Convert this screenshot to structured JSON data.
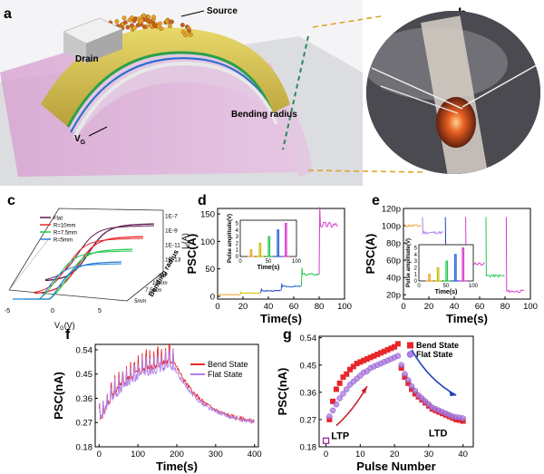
{
  "figure": {
    "panels": {
      "a": {
        "label": "a",
        "annotations": {
          "source": "Source",
          "drain": "Drain",
          "vg": "V",
          "vg_sub": "G",
          "radius": "Bending radius"
        }
      },
      "b": {
        "label": "b"
      },
      "c": {
        "label": "c",
        "xlabel": "V",
        "xlabel_sub": "G",
        "xlabel_unit": "(V)",
        "zlabel": "I",
        "zlabel_sub": "d",
        "zlabel_unit": "(A)",
        "depth_label": "Bending radius",
        "xticks": [
          "-5",
          "0",
          "5"
        ],
        "zticks": [
          "1E-7",
          "1E-9",
          "1E-11",
          "1E-13"
        ],
        "depth_ticks": [
          "flat",
          "10mm",
          "7.5mm",
          "5mm"
        ]
      },
      "d": {
        "label": "d"
      },
      "e": {
        "label": "e"
      },
      "f": {
        "label": "f"
      },
      "g": {
        "label": "g"
      }
    },
    "colors": {
      "red": "#e8262b",
      "purple": "#b07ee8",
      "darkred": "#8b1a1a",
      "blue": "#1f3fc0",
      "green": "#22c84a",
      "magenta": "#d63ac8",
      "orange": "#f2a02a",
      "yellow": "#c8c000"
    }
  },
  "chart_data": [
    {
      "panel": "c",
      "type": "line",
      "title": "",
      "xlabel": "VG(V)",
      "ylabel": "Id(A)",
      "zlabel": "Bending radius",
      "legend": [
        "Flat",
        "R=10mm",
        "R=7.5mm",
        "R=5mm"
      ],
      "series_colors": [
        "#5a1a4a",
        "#e8262b",
        "#22c84a",
        "#2a7fd8"
      ],
      "xlim": [
        -5,
        5
      ],
      "note": "3D transfer curves, log current axis"
    },
    {
      "panel": "d",
      "type": "line",
      "title": "",
      "xlabel": "Time(s)",
      "ylabel": "PSC(A)",
      "xlim": [
        0,
        100
      ],
      "ylim": [
        -5,
        160
      ],
      "xticks": [
        0,
        20,
        40,
        60,
        80,
        100
      ],
      "yticks": [
        0,
        50,
        100,
        150
      ],
      "series": [
        {
          "name": "pulse1",
          "color": "#f2a02a",
          "x": [
            0,
            18
          ],
          "y": [
            3,
            3
          ]
        },
        {
          "name": "pulse2",
          "color": "#c8c000",
          "x": [
            18,
            34
          ],
          "y": [
            6,
            6
          ]
        },
        {
          "name": "pulse3",
          "color": "#1f3fc0",
          "x": [
            34,
            50
          ],
          "y": [
            10,
            10
          ]
        },
        {
          "name": "pulse4",
          "color": "#2a5fd8",
          "x": [
            50,
            66
          ],
          "y": [
            18,
            18
          ]
        },
        {
          "name": "pulse5",
          "color": "#22c84a",
          "x": [
            66,
            80
          ],
          "y": [
            40,
            40
          ]
        },
        {
          "name": "pulse6",
          "color": "#d63ac8",
          "x": [
            80,
            95
          ],
          "y": [
            130,
            130
          ]
        }
      ],
      "inset": {
        "xlabel": "Time(s)",
        "ylabel": "Pulse amplitude(V)",
        "xticks": [
          0,
          50,
          100
        ],
        "yticks": [
          0,
          1,
          2,
          3,
          4,
          5
        ],
        "pulses": [
          {
            "t": 18,
            "amp": 1,
            "color": "#f2a02a"
          },
          {
            "t": 34,
            "amp": 2,
            "color": "#c8c000"
          },
          {
            "t": 50,
            "amp": 3,
            "color": "#22c84a"
          },
          {
            "t": 66,
            "amp": 4,
            "color": "#2a5fd8"
          },
          {
            "t": 80,
            "amp": 5,
            "color": "#d63ac8"
          }
        ]
      }
    },
    {
      "panel": "e",
      "type": "line",
      "title": "",
      "xlabel": "Time(s)",
      "ylabel": "PSC(A)",
      "xlim": [
        0,
        100
      ],
      "ylim": [
        15,
        120
      ],
      "xticks": [
        0,
        20,
        40,
        60,
        80,
        100
      ],
      "yticks": [
        "20p",
        "40p",
        "60p",
        "80p",
        "100p",
        "120p"
      ],
      "ytick_values": [
        20,
        40,
        60,
        80,
        100,
        120
      ],
      "series": [
        {
          "name": "pulse1",
          "color": "#f2a02a",
          "x": [
            0,
            14
          ],
          "y": [
            100,
            100
          ]
        },
        {
          "name": "pulse2",
          "color": "#b07ee8",
          "x": [
            15,
            32
          ],
          "y": [
            92,
            92
          ]
        },
        {
          "name": "pulse3",
          "color": "#1f3fc0",
          "x": [
            33,
            48
          ],
          "y": [
            74,
            74
          ]
        },
        {
          "name": "pulse4",
          "color": "#d63ac8",
          "x": [
            49,
            64
          ],
          "y": [
            56,
            56
          ]
        },
        {
          "name": "pulse5",
          "color": "#22c84a",
          "x": [
            65,
            80
          ],
          "y": [
            42,
            42
          ]
        },
        {
          "name": "pulse6",
          "color": "#d63ac8",
          "x": [
            81,
            95
          ],
          "y": [
            24,
            24
          ]
        }
      ],
      "inset": {
        "xlabel": "Time(s)",
        "ylabel": "Pulse amplitude(V)",
        "xticks": [
          0,
          50,
          100
        ],
        "yticks": [
          0,
          1,
          2,
          3,
          4,
          5
        ],
        "pulses": [
          {
            "t": 18,
            "amp": 1,
            "color": "#f2a02a"
          },
          {
            "t": 34,
            "amp": 2,
            "color": "#c8c000"
          },
          {
            "t": 50,
            "amp": 3,
            "color": "#22c84a"
          },
          {
            "t": 66,
            "amp": 4,
            "color": "#2a5fd8"
          },
          {
            "t": 80,
            "amp": 5,
            "color": "#d63ac8"
          }
        ]
      }
    },
    {
      "panel": "f",
      "type": "line",
      "title": "",
      "xlabel": "Time(s)",
      "ylabel": "PSC(nA)",
      "xlim": [
        -10,
        410
      ],
      "ylim": [
        0.18,
        0.56
      ],
      "xticks": [
        0,
        100,
        200,
        300,
        400
      ],
      "yticks": [
        0.18,
        0.27,
        0.36,
        0.45,
        0.54
      ],
      "legend": [
        "Bend State",
        "Flat State"
      ],
      "series": [
        {
          "name": "Bend State",
          "color": "#e8262b",
          "peak": 0.53,
          "start": 0.27,
          "end": 0.26
        },
        {
          "name": "Flat State",
          "color": "#b07ee8",
          "peak": 0.51,
          "start": 0.27,
          "end": 0.26
        }
      ]
    },
    {
      "panel": "g",
      "type": "scatter",
      "title": "",
      "xlabel": "Pulse Number",
      "ylabel": "PSC(nA)",
      "xlim": [
        -2,
        43
      ],
      "ylim": [
        0.18,
        0.545
      ],
      "xticks": [
        0,
        10,
        20,
        30,
        40
      ],
      "yticks": [
        0.18,
        0.27,
        0.36,
        0.45,
        0.54
      ],
      "legend": [
        "Bend State",
        "Flat State"
      ],
      "annotations": [
        "LTP",
        "LTD"
      ],
      "series": [
        {
          "name": "Bend State",
          "color": "#e8262b",
          "marker": "square",
          "x": [
            1,
            2,
            3,
            4,
            5,
            6,
            7,
            8,
            9,
            10,
            11,
            12,
            13,
            14,
            15,
            16,
            17,
            18,
            19,
            20,
            21,
            22,
            23,
            24,
            25,
            26,
            27,
            28,
            29,
            30,
            31,
            32,
            33,
            34,
            35,
            36,
            37,
            38,
            39,
            40
          ],
          "y": [
            0.27,
            0.33,
            0.37,
            0.39,
            0.41,
            0.42,
            0.435,
            0.445,
            0.455,
            0.46,
            0.465,
            0.47,
            0.475,
            0.48,
            0.485,
            0.49,
            0.495,
            0.5,
            0.505,
            0.51,
            0.52,
            0.44,
            0.41,
            0.39,
            0.37,
            0.355,
            0.345,
            0.335,
            0.325,
            0.315,
            0.305,
            0.3,
            0.295,
            0.29,
            0.285,
            0.28,
            0.275,
            0.27,
            0.268,
            0.265
          ]
        },
        {
          "name": "Flat State",
          "color": "#b07ee8",
          "marker": "circle",
          "x": [
            1,
            2,
            3,
            4,
            5,
            6,
            7,
            8,
            9,
            10,
            11,
            12,
            13,
            14,
            15,
            16,
            17,
            18,
            19,
            20,
            21,
            22,
            23,
            24,
            25,
            26,
            27,
            28,
            29,
            30,
            31,
            32,
            33,
            34,
            35,
            36,
            37,
            38,
            39,
            40
          ],
          "y": [
            0.28,
            0.3,
            0.32,
            0.34,
            0.355,
            0.37,
            0.385,
            0.395,
            0.405,
            0.415,
            0.425,
            0.43,
            0.44,
            0.445,
            0.45,
            0.455,
            0.46,
            0.465,
            0.47,
            0.475,
            0.48,
            0.45,
            0.42,
            0.4,
            0.38,
            0.365,
            0.35,
            0.34,
            0.33,
            0.32,
            0.31,
            0.305,
            0.3,
            0.295,
            0.29,
            0.285,
            0.28,
            0.278,
            0.276,
            0.274
          ]
        }
      ]
    }
  ]
}
